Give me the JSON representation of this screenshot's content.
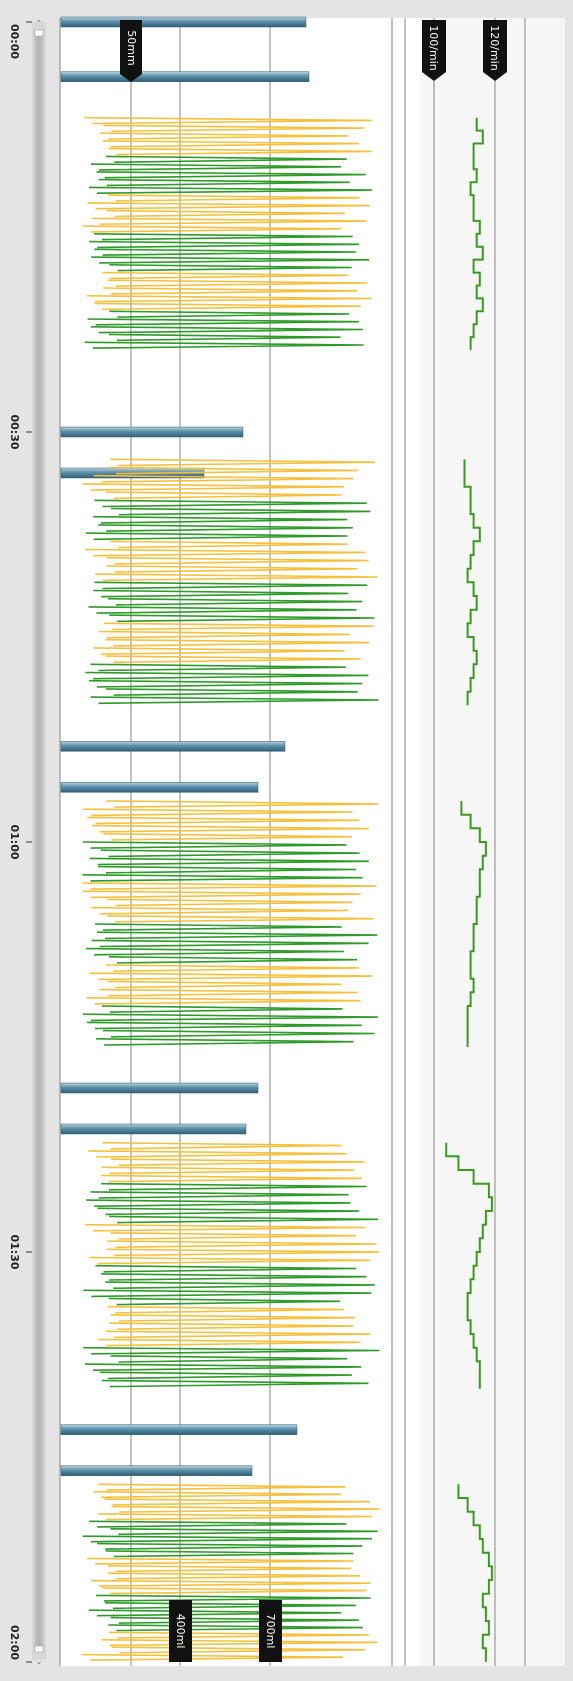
{
  "chart_data": {
    "type": "line",
    "orientation": "vertical-time-axis",
    "time_ticks": [
      "00:00",
      "00:30",
      "01:00",
      "01:30",
      "02:00"
    ],
    "reference_labels": {
      "depth": "50mm",
      "volume_low": "400ml",
      "volume_high": "700ml",
      "rate_low": "100/min",
      "rate_high": "120/min"
    },
    "ventilation_bars_ml": [
      {
        "t": 0,
        "volume": 820
      },
      {
        "t": 4,
        "volume": 830
      },
      {
        "t": 30,
        "volume": 610
      },
      {
        "t": 33,
        "volume": 480
      },
      {
        "t": 53,
        "volume": 750
      },
      {
        "t": 56,
        "volume": 660
      },
      {
        "t": 78,
        "volume": 660
      },
      {
        "t": 81,
        "volume": 620
      },
      {
        "t": 103,
        "volume": 790
      },
      {
        "t": 106,
        "volume": 640
      }
    ],
    "compression_cycles": [
      {
        "start": 7,
        "end": 24,
        "count": 30
      },
      {
        "start": 32,
        "end": 50,
        "count": 30
      },
      {
        "start": 57,
        "end": 75,
        "count": 30
      },
      {
        "start": 82,
        "end": 100,
        "count": 30
      },
      {
        "start": 107,
        "end": 120,
        "count": 24
      }
    ],
    "rate_cycles": [
      {
        "start": 7,
        "end": 24,
        "rates": [
          114,
          116,
          113,
          113,
          114,
          112,
          113,
          113,
          115,
          114,
          116,
          113,
          115,
          114,
          116,
          114,
          113,
          112
        ]
      },
      {
        "start": 32,
        "end": 50,
        "rates": [
          110,
          110,
          112,
          112,
          113,
          115,
          113,
          112,
          111,
          113,
          114,
          112,
          111,
          113,
          114,
          113,
          112,
          111
        ]
      },
      {
        "start": 57,
        "end": 75,
        "rates": [
          109,
          112,
          115,
          117,
          116,
          115,
          115,
          114,
          114,
          113,
          113,
          112,
          112,
          113,
          112,
          111,
          111,
          111
        ]
      },
      {
        "start": 82,
        "end": 100,
        "rates": [
          104,
          108,
          113,
          118,
          119,
          117,
          116,
          115,
          114,
          113,
          112,
          111,
          111,
          112,
          113,
          114,
          115,
          115
        ]
      },
      {
        "start": 107,
        "end": 120,
        "rates": [
          108,
          111,
          113,
          115,
          116,
          118,
          119,
          118,
          116,
          117,
          118,
          116,
          117
        ]
      }
    ],
    "colors": {
      "compression_correct": "#2e9a2a",
      "compression_incorrect": "#f5c03e",
      "rate_line": "#3a9a1e",
      "ventilation_bar": "#5e8fa9",
      "badge": "#111111",
      "gridline": "#9a9a9a"
    }
  }
}
